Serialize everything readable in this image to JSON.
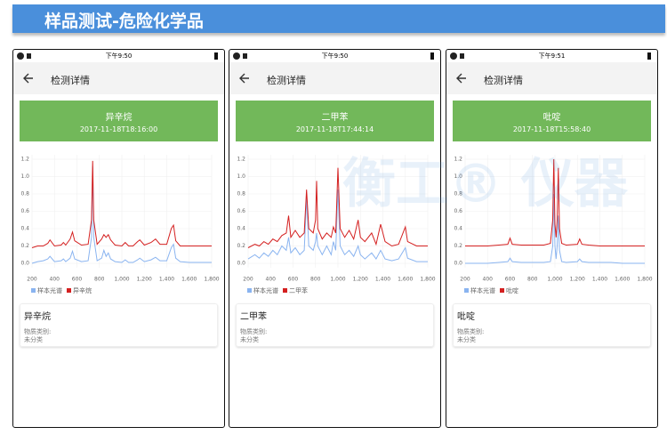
{
  "header": {
    "title": "样品测试-危险化学品"
  },
  "watermark": "衡工® 仪器",
  "panels": [
    {
      "status_time": "下午9:50",
      "nav_title": "检测详情",
      "card": {
        "title": "异辛烷",
        "timestamp": "2017-11-18T18:16:00"
      },
      "chart_data": {
        "type": "line",
        "x": [
          200,
          250,
          300,
          340,
          360,
          400,
          460,
          480,
          500,
          540,
          560,
          580,
          640,
          700,
          730,
          740,
          750,
          780,
          820,
          840,
          860,
          880,
          900,
          940,
          1000,
          1030,
          1060,
          1100,
          1140,
          1160,
          1200,
          1260,
          1300,
          1340,
          1400,
          1440,
          1460,
          1480,
          1520,
          1600,
          1700,
          1800
        ],
        "series": [
          {
            "name": "样本光谱",
            "color": "#8ab4f0",
            "values": [
              0.0,
              0.02,
              0.03,
              0.05,
              0.08,
              0.02,
              0.03,
              0.05,
              0.02,
              0.06,
              0.14,
              0.05,
              0.02,
              0.03,
              0.3,
              1.12,
              0.3,
              0.03,
              0.06,
              0.15,
              0.08,
              0.12,
              0.05,
              0.02,
              0.01,
              0.04,
              0.01,
              0.01,
              0.04,
              0.06,
              0.02,
              0.04,
              0.07,
              0.03,
              0.03,
              0.18,
              0.22,
              0.06,
              0.02,
              0.01,
              0.01,
              0.01
            ]
          },
          {
            "name": "异辛烷",
            "color": "#d42020",
            "values": [
              0.18,
              0.2,
              0.2,
              0.23,
              0.27,
              0.2,
              0.21,
              0.24,
              0.21,
              0.28,
              0.36,
              0.26,
              0.21,
              0.22,
              0.5,
              1.18,
              0.5,
              0.22,
              0.28,
              0.33,
              0.3,
              0.33,
              0.27,
              0.21,
              0.2,
              0.24,
              0.2,
              0.2,
              0.25,
              0.27,
              0.21,
              0.24,
              0.28,
              0.22,
              0.22,
              0.4,
              0.44,
              0.26,
              0.2,
              0.2,
              0.2,
              0.2
            ]
          }
        ],
        "xlim": [
          200,
          1800
        ],
        "ylim": [
          -0.05,
          1.25
        ],
        "xticks": [
          200,
          400,
          600,
          800,
          {
            "value": 1000,
            "label": "1,000"
          },
          {
            "value": 1200,
            "label": "1,200"
          },
          {
            "value": 1400,
            "label": "1,400"
          },
          {
            "value": 1600,
            "label": "1,600"
          },
          {
            "value": 1800,
            "label": "1,800"
          }
        ],
        "yticks": [
          {
            "value": 0,
            "label": "0.0"
          },
          0.2,
          0.4,
          0.6,
          0.8,
          {
            "value": 1,
            "label": "1.0"
          },
          1.2
        ],
        "grid": true
      },
      "info": {
        "name": "异辛烷",
        "category_label": "物质类别:",
        "category_value": "未分类"
      }
    },
    {
      "status_time": "下午9:50",
      "nav_title": "检测详情",
      "card": {
        "title": "二甲苯",
        "timestamp": "2017-11-18T17:44:14"
      },
      "chart_data": {
        "type": "line",
        "x": [
          200,
          260,
          300,
          340,
          380,
          420,
          460,
          500,
          540,
          560,
          580,
          620,
          660,
          700,
          720,
          740,
          780,
          800,
          810,
          820,
          860,
          900,
          940,
          960,
          980,
          1000,
          1020,
          1060,
          1100,
          1140,
          1180,
          1200,
          1240,
          1300,
          1340,
          1380,
          1420,
          1480,
          1540,
          1600,
          1620,
          1700,
          1800
        ],
        "series": [
          {
            "name": "样本光谱",
            "color": "#8ab4f0",
            "values": [
              0.05,
              0.1,
              0.06,
              0.12,
              0.08,
              0.15,
              0.1,
              0.2,
              0.15,
              0.3,
              0.12,
              0.18,
              0.1,
              0.15,
              0.75,
              0.2,
              0.15,
              0.25,
              0.35,
              0.2,
              0.1,
              0.2,
              0.1,
              0.25,
              0.15,
              0.85,
              0.2,
              0.1,
              0.15,
              0.08,
              0.2,
              0.1,
              0.05,
              0.12,
              0.05,
              0.15,
              0.05,
              0.03,
              0.05,
              0.18,
              0.06,
              0.02,
              0.02
            ]
          },
          {
            "name": "二甲苯",
            "color": "#d42020",
            "values": [
              0.18,
              0.22,
              0.2,
              0.25,
              0.22,
              0.28,
              0.25,
              0.32,
              0.35,
              0.55,
              0.3,
              0.38,
              0.3,
              0.35,
              0.85,
              0.4,
              0.35,
              0.5,
              0.95,
              0.4,
              0.28,
              0.35,
              0.3,
              0.42,
              0.35,
              1.1,
              0.4,
              0.3,
              0.38,
              0.28,
              0.5,
              0.3,
              0.25,
              0.35,
              0.22,
              0.45,
              0.25,
              0.2,
              0.22,
              0.42,
              0.25,
              0.2,
              0.2
            ]
          }
        ],
        "xlim": [
          200,
          1800
        ],
        "ylim": [
          -0.05,
          1.25
        ],
        "xticks": [
          200,
          400,
          600,
          800,
          {
            "value": 1000,
            "label": "1,000"
          },
          {
            "value": 1200,
            "label": "1,200"
          },
          {
            "value": 1400,
            "label": "1,400"
          },
          {
            "value": 1600,
            "label": "1,600"
          },
          {
            "value": 1800,
            "label": "1,800"
          }
        ],
        "yticks": [
          {
            "value": 0,
            "label": "0.0"
          },
          0.2,
          0.4,
          0.6,
          0.8,
          {
            "value": 1,
            "label": "1.0"
          },
          1.2
        ],
        "grid": true
      },
      "info": {
        "name": "二甲苯",
        "category_label": "物质类别:",
        "category_value": "未分类"
      }
    },
    {
      "status_time": "下午9:51",
      "nav_title": "检测详情",
      "card": {
        "title": "吡啶",
        "timestamp": "2017-11-18T15:58:40"
      },
      "chart_data": {
        "type": "line",
        "x": [
          200,
          300,
          400,
          500,
          580,
          600,
          620,
          700,
          800,
          900,
          960,
          980,
          990,
          1000,
          1010,
          1020,
          1030,
          1040,
          1060,
          1100,
          1200,
          1220,
          1240,
          1300,
          1400,
          1500,
          1600,
          1700,
          1800
        ],
        "series": [
          {
            "name": "样本光谱",
            "color": "#8ab4f0",
            "values": [
              0.0,
              0.0,
              0.0,
              0.01,
              0.02,
              0.06,
              0.02,
              0.01,
              0.01,
              0.01,
              0.02,
              0.2,
              0.8,
              0.2,
              0.05,
              0.2,
              0.55,
              0.15,
              0.02,
              0.01,
              0.02,
              0.05,
              0.02,
              0.01,
              0.01,
              0.01,
              0.0,
              0.0,
              0.0
            ]
          },
          {
            "name": "吡啶",
            "color": "#d42020",
            "values": [
              0.2,
              0.2,
              0.2,
              0.21,
              0.22,
              0.29,
              0.22,
              0.21,
              0.21,
              0.21,
              0.23,
              0.5,
              1.2,
              0.45,
              0.3,
              0.5,
              1.1,
              0.4,
              0.23,
              0.21,
              0.22,
              0.28,
              0.22,
              0.21,
              0.2,
              0.2,
              0.2,
              0.2,
              0.2
            ]
          }
        ],
        "xlim": [
          200,
          1800
        ],
        "ylim": [
          -0.05,
          1.25
        ],
        "xticks": [
          200,
          400,
          600,
          800,
          {
            "value": 1000,
            "label": "1,000"
          },
          {
            "value": 1200,
            "label": "1,200"
          },
          {
            "value": 1400,
            "label": "1,400"
          },
          {
            "value": 1600,
            "label": "1,600"
          },
          {
            "value": 1800,
            "label": "1,800"
          }
        ],
        "yticks": [
          {
            "value": 0,
            "label": "0.0"
          },
          0.2,
          0.4,
          0.6,
          0.8,
          {
            "value": 1,
            "label": "1.0"
          },
          1.2
        ],
        "grid": true
      },
      "info": {
        "name": "吡啶",
        "category_label": "物质类别:",
        "category_value": "未分类"
      }
    }
  ]
}
